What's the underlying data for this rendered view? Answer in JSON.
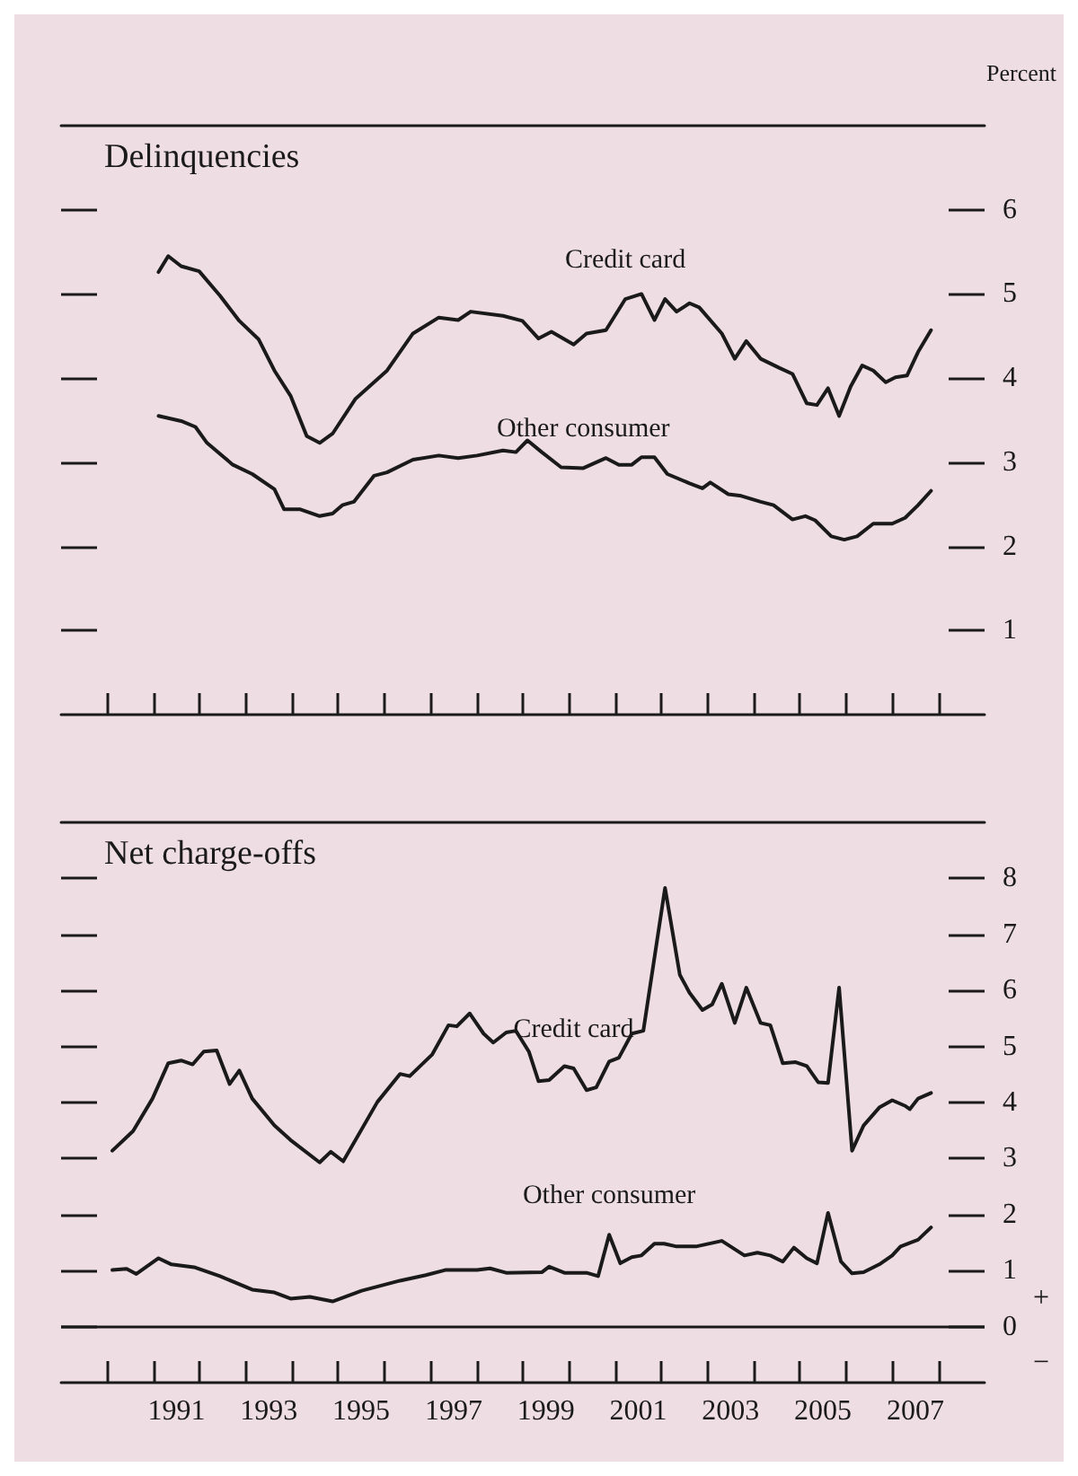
{
  "chart_data": [
    {
      "type": "line",
      "title": "Delinquencies",
      "ylabel": "Percent",
      "xlim": [
        1989,
        2009
      ],
      "ylim": [
        0,
        7
      ],
      "xticks": [
        {
          "value": 1990,
          "label": null
        },
        {
          "value": 1991,
          "label": null
        },
        {
          "value": 1992,
          "label": null
        },
        {
          "value": 1993,
          "label": null
        },
        {
          "value": 1994,
          "label": null
        },
        {
          "value": 1995,
          "label": null
        },
        {
          "value": 1996,
          "label": null
        },
        {
          "value": 1997,
          "label": null
        },
        {
          "value": 1998,
          "label": null
        },
        {
          "value": 1999,
          "label": null
        },
        {
          "value": 2000,
          "label": null
        },
        {
          "value": 2001,
          "label": null
        },
        {
          "value": 2002,
          "label": null
        },
        {
          "value": 2003,
          "label": null
        },
        {
          "value": 2004,
          "label": null
        },
        {
          "value": 2005,
          "label": null
        },
        {
          "value": 2006,
          "label": null
        },
        {
          "value": 2007,
          "label": null
        },
        {
          "value": 2008,
          "label": null
        }
      ],
      "yticks": [
        1,
        2,
        3,
        4,
        5,
        6
      ],
      "tick_labels": "y",
      "grid": false,
      "legend": false,
      "marker": "none",
      "line_style": "solid",
      "series": [
        {
          "name": "Credit card",
          "color": "#1a1a1a",
          "x": [
            1991.11,
            1991.32,
            1991.6,
            1991.99,
            1992.44,
            1992.86,
            1993.28,
            1993.62,
            1993.97,
            1994.32,
            1994.6,
            1994.88,
            1995.37,
            1996.06,
            1996.62,
            1997.18,
            1997.6,
            1997.87,
            1998.57,
            1998.99,
            1999.34,
            1999.62,
            2000.1,
            2000.38,
            2000.8,
            2001.22,
            2001.57,
            2001.85,
            2002.08,
            2002.33,
            2002.61,
            2002.82,
            2003.31,
            2003.59,
            2003.84,
            2004.15,
            2004.56,
            2004.84,
            2005.15,
            2005.37,
            2005.61,
            2005.85,
            2006.1,
            2006.35,
            2006.59,
            2006.86,
            2007.07,
            2007.32,
            2007.56,
            2007.84
          ],
          "values": [
            5.26,
            5.45,
            5.33,
            5.27,
            4.98,
            4.68,
            4.46,
            4.09,
            3.79,
            3.31,
            3.23,
            3.34,
            3.75,
            4.09,
            4.53,
            4.72,
            4.69,
            4.79,
            4.74,
            4.68,
            4.47,
            4.55,
            4.4,
            4.53,
            4.57,
            4.94,
            5.0,
            4.69,
            4.94,
            4.79,
            4.89,
            4.84,
            4.53,
            4.23,
            4.44,
            4.23,
            4.12,
            4.05,
            3.7,
            3.68,
            3.88,
            3.55,
            3.9,
            4.15,
            4.09,
            3.95,
            4.01,
            4.03,
            4.31,
            4.57
          ]
        },
        {
          "name": "Other consumer",
          "color": "#1a1a1a",
          "x": [
            1991.11,
            1991.6,
            1991.91,
            1992.16,
            1992.72,
            1993.14,
            1993.62,
            1993.83,
            1994.18,
            1994.6,
            1994.88,
            1995.09,
            1995.34,
            1995.78,
            1996.06,
            1996.62,
            1997.18,
            1997.6,
            1998.01,
            1998.57,
            1998.85,
            1999.1,
            1999.41,
            1999.83,
            2000.31,
            2000.8,
            2001.08,
            2001.36,
            2001.57,
            2001.85,
            2002.13,
            2002.61,
            2002.89,
            2003.06,
            2003.45,
            2003.73,
            2004.15,
            2004.43,
            2004.84,
            2005.12,
            2005.33,
            2005.68,
            2005.96,
            2006.24,
            2006.59,
            2007.0,
            2007.28,
            2007.56,
            2007.84
          ],
          "values": [
            3.55,
            3.49,
            3.42,
            3.23,
            2.97,
            2.86,
            2.68,
            2.44,
            2.44,
            2.36,
            2.39,
            2.49,
            2.53,
            2.84,
            2.88,
            3.03,
            3.08,
            3.05,
            3.08,
            3.14,
            3.12,
            3.26,
            3.12,
            2.94,
            2.93,
            3.05,
            2.97,
            2.97,
            3.06,
            3.06,
            2.86,
            2.75,
            2.69,
            2.76,
            2.62,
            2.6,
            2.53,
            2.49,
            2.32,
            2.36,
            2.31,
            2.12,
            2.08,
            2.12,
            2.27,
            2.27,
            2.34,
            2.49,
            2.66
          ]
        }
      ]
    },
    {
      "type": "line",
      "title": "Net charge-offs",
      "xlim": [
        1989,
        2009
      ],
      "ylim": [
        -1,
        9
      ],
      "xticks": [
        {
          "value": 1990,
          "label": null
        },
        {
          "value": 1991,
          "label": null
        },
        {
          "value": 1991.5,
          "label": "1991"
        },
        {
          "value": 1992,
          "label": null
        },
        {
          "value": 1993,
          "label": null
        },
        {
          "value": 1993.5,
          "label": "1993"
        },
        {
          "value": 1994,
          "label": null
        },
        {
          "value": 1995,
          "label": null
        },
        {
          "value": 1995.5,
          "label": "1995"
        },
        {
          "value": 1996,
          "label": null
        },
        {
          "value": 1997,
          "label": null
        },
        {
          "value": 1997.5,
          "label": "1997"
        },
        {
          "value": 1998,
          "label": null
        },
        {
          "value": 1999,
          "label": null
        },
        {
          "value": 1999.5,
          "label": "1999"
        },
        {
          "value": 2000,
          "label": null
        },
        {
          "value": 2001,
          "label": null
        },
        {
          "value": 2001.5,
          "label": "2001"
        },
        {
          "value": 2002,
          "label": null
        },
        {
          "value": 2003,
          "label": null
        },
        {
          "value": 2003.5,
          "label": "2003"
        },
        {
          "value": 2004,
          "label": null
        },
        {
          "value": 2005,
          "label": null
        },
        {
          "value": 2005.5,
          "label": "2005"
        },
        {
          "value": 2006,
          "label": null
        },
        {
          "value": 2007,
          "label": null
        },
        {
          "value": 2007.5,
          "label": "2007"
        },
        {
          "value": 2008,
          "label": null
        }
      ],
      "yticks": [
        0,
        1,
        2,
        3,
        4,
        5,
        6,
        7,
        8
      ],
      "grid": false,
      "legend": false,
      "marker": "none",
      "line_style": "solid",
      "ref_lines": [
        {
          "axis": "y",
          "value": 0,
          "color": "#1a1a1a",
          "line_style": "solid"
        }
      ],
      "annotations": [
        "+",
        "−"
      ],
      "series": [
        {
          "name": "Credit card",
          "color": "#1a1a1a",
          "x": [
            1990.11,
            1990.56,
            1990.98,
            1991.32,
            1991.6,
            1991.85,
            1992.09,
            1992.37,
            1992.65,
            1992.86,
            1993.14,
            1993.62,
            1993.97,
            1994.6,
            1994.84,
            1995.11,
            1995.85,
            1996.34,
            1996.55,
            1997.04,
            1997.39,
            1997.57,
            1997.85,
            1998.15,
            1998.36,
            1998.64,
            1998.85,
            1999.13,
            1999.34,
            1999.57,
            1999.9,
            2000.1,
            2000.38,
            2000.59,
            2000.87,
            2001.08,
            2001.36,
            2001.61,
            2002.08,
            2002.4,
            2002.61,
            2002.89,
            2003.1,
            2003.31,
            2003.59,
            2003.84,
            2004.15,
            2004.36,
            2004.63,
            2004.91,
            2005.15,
            2005.4,
            2005.61,
            2005.85,
            2006.13,
            2006.38,
            2006.72,
            2007.0,
            2007.28,
            2007.38,
            2007.56,
            2007.84
          ],
          "values": [
            3.14,
            3.49,
            4.07,
            4.7,
            4.75,
            4.68,
            4.91,
            4.93,
            4.33,
            4.57,
            4.07,
            3.59,
            3.33,
            2.93,
            3.12,
            2.95,
            4.01,
            4.51,
            4.47,
            4.86,
            5.38,
            5.36,
            5.59,
            5.23,
            5.07,
            5.25,
            5.28,
            4.91,
            4.38,
            4.4,
            4.65,
            4.61,
            4.22,
            4.27,
            4.73,
            4.8,
            5.23,
            5.28,
            7.83,
            6.28,
            5.96,
            5.65,
            5.75,
            6.12,
            5.42,
            6.05,
            5.42,
            5.38,
            4.7,
            4.72,
            4.65,
            4.36,
            4.35,
            6.05,
            3.14,
            3.59,
            3.91,
            4.04,
            3.94,
            3.88,
            4.07,
            4.17
          ]
        },
        {
          "name": "Other consumer",
          "color": "#1a1a1a",
          "x": [
            1990.11,
            1990.42,
            1990.63,
            1991.11,
            1991.39,
            1991.88,
            1992.44,
            1993.14,
            1993.62,
            1993.97,
            1994.39,
            1994.88,
            1995.51,
            1996.34,
            1996.9,
            1997.32,
            1998.01,
            1998.29,
            1998.64,
            1999.41,
            1999.57,
            1999.9,
            2000.38,
            2000.63,
            2000.87,
            2001.11,
            2001.36,
            2001.57,
            2001.85,
            2002.06,
            2002.33,
            2002.75,
            2003.31,
            2003.8,
            2004.08,
            2004.36,
            2004.63,
            2004.87,
            2005.15,
            2005.37,
            2005.61,
            2005.89,
            2006.13,
            2006.38,
            2006.72,
            2007.0,
            2007.18,
            2007.56,
            2007.84
          ],
          "values": [
            1.01,
            1.03,
            0.94,
            1.22,
            1.11,
            1.06,
            0.9,
            0.66,
            0.61,
            0.5,
            0.53,
            0.45,
            0.64,
            0.82,
            0.92,
            1.01,
            1.01,
            1.04,
            0.96,
            0.97,
            1.07,
            0.96,
            0.96,
            0.9,
            1.64,
            1.13,
            1.24,
            1.27,
            1.48,
            1.48,
            1.43,
            1.43,
            1.53,
            1.27,
            1.32,
            1.27,
            1.16,
            1.41,
            1.22,
            1.13,
            2.03,
            1.16,
            0.95,
            0.97,
            1.11,
            1.27,
            1.43,
            1.55,
            1.77
          ]
        }
      ]
    }
  ]
}
